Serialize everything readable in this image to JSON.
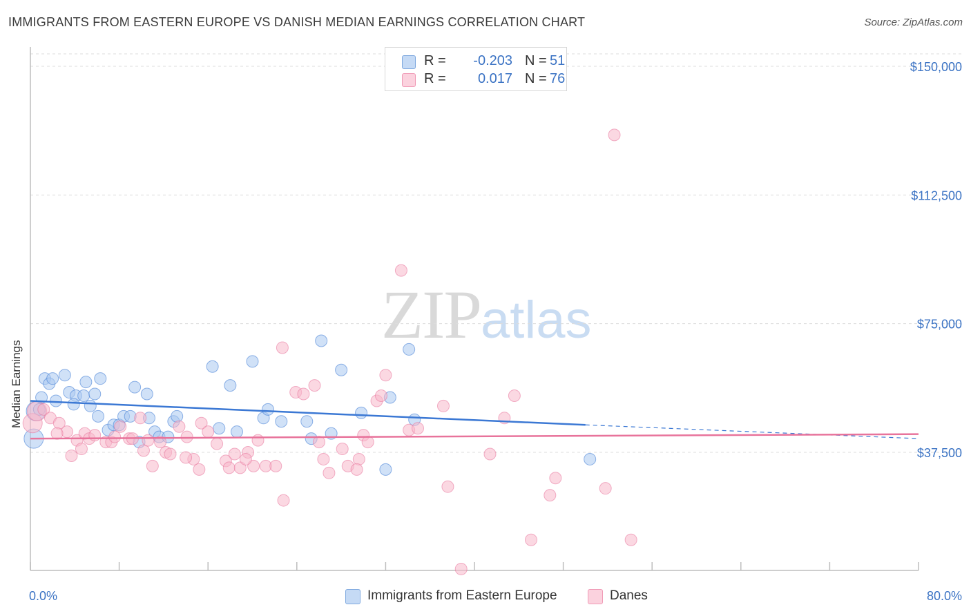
{
  "header": {
    "title": "IMMIGRANTS FROM EASTERN EUROPE VS DANISH MEDIAN EARNINGS CORRELATION CHART",
    "source": "Source: ZipAtlas.com"
  },
  "watermark": {
    "zip": "ZIP",
    "atlas": "atlas"
  },
  "legend": {
    "rows": [
      {
        "r_label": "R =",
        "r_value": "-0.203",
        "n_label": "N =",
        "n_value": "51",
        "color": "#a9c8f0"
      },
      {
        "r_label": "R =",
        "r_value": "0.017",
        "n_label": "N =",
        "n_value": "76",
        "color": "#f7b8cb"
      }
    ]
  },
  "bottom_legend": {
    "items": [
      {
        "label": "Immigrants from Eastern Europe",
        "color": "#a9c8f0"
      },
      {
        "label": "Danes",
        "color": "#f7b8cb"
      }
    ]
  },
  "chart_data": {
    "type": "scatter",
    "title": "IMMIGRANTS FROM EASTERN EUROPE VS DANISH MEDIAN EARNINGS CORRELATION CHART",
    "xlabel": "",
    "ylabel": "Median Earnings",
    "xlim": [
      0,
      80
    ],
    "ylim": [
      0,
      155000
    ],
    "x_tick_labels": [
      "0.0%",
      "80.0%"
    ],
    "y_ticks": [
      37500,
      75000,
      112500,
      150000
    ],
    "y_tick_labels": [
      "$37,500",
      "$75,000",
      "$112,500",
      "$150,000"
    ],
    "grid": true,
    "legend_position": "top-center",
    "series": [
      {
        "name": "Immigrants from Eastern Europe",
        "color": "#3b78d4",
        "fill": "#a9c8f0",
        "trend": {
          "x": [
            0,
            50
          ],
          "y": [
            52500,
            45500
          ],
          "dashed_to": [
            80,
            41500
          ]
        },
        "points": [
          [
            0.3,
            41500
          ],
          [
            0.5,
            49500
          ],
          [
            1.0,
            53500
          ],
          [
            1.3,
            59000
          ],
          [
            1.7,
            57500
          ],
          [
            2.0,
            59000
          ],
          [
            2.3,
            52500
          ],
          [
            3.1,
            60000
          ],
          [
            3.5,
            55000
          ],
          [
            4.1,
            54000
          ],
          [
            4.8,
            54000
          ],
          [
            3.9,
            51500
          ],
          [
            5.0,
            58000
          ],
          [
            5.4,
            51000
          ],
          [
            5.8,
            54500
          ],
          [
            6.1,
            48000
          ],
          [
            6.3,
            59000
          ],
          [
            7.0,
            44000
          ],
          [
            7.5,
            45500
          ],
          [
            8.0,
            45500
          ],
          [
            8.4,
            48000
          ],
          [
            9.0,
            48000
          ],
          [
            9.4,
            56500
          ],
          [
            9.8,
            40500
          ],
          [
            10.5,
            54500
          ],
          [
            10.7,
            47500
          ],
          [
            11.2,
            43500
          ],
          [
            11.6,
            42000
          ],
          [
            12.4,
            42000
          ],
          [
            12.9,
            46500
          ],
          [
            13.2,
            48000
          ],
          [
            16.4,
            62500
          ],
          [
            17.0,
            44500
          ],
          [
            18.0,
            57000
          ],
          [
            18.6,
            43500
          ],
          [
            20.0,
            64000
          ],
          [
            21.0,
            47500
          ],
          [
            21.4,
            50000
          ],
          [
            22.6,
            46500
          ],
          [
            24.9,
            46500
          ],
          [
            25.3,
            41500
          ],
          [
            26.2,
            70000
          ],
          [
            27.1,
            43000
          ],
          [
            28.0,
            61500
          ],
          [
            29.8,
            49000
          ],
          [
            32.0,
            32500
          ],
          [
            32.4,
            53500
          ],
          [
            34.1,
            67500
          ],
          [
            34.6,
            47000
          ],
          [
            50.4,
            35500
          ],
          [
            0.8,
            50000
          ]
        ]
      },
      {
        "name": "Danes",
        "color": "#e8739b",
        "fill": "#f7b8cb",
        "trend": {
          "x": [
            0,
            80
          ],
          "y": [
            41500,
            42800
          ]
        },
        "points": [
          [
            0.2,
            46000
          ],
          [
            0.6,
            49500
          ],
          [
            1.2,
            50000
          ],
          [
            1.8,
            47500
          ],
          [
            2.6,
            46000
          ],
          [
            3.3,
            43500
          ],
          [
            4.2,
            41000
          ],
          [
            4.9,
            43000
          ],
          [
            5.3,
            41500
          ],
          [
            2.4,
            43000
          ],
          [
            3.7,
            36500
          ],
          [
            4.6,
            38500
          ],
          [
            5.8,
            42500
          ],
          [
            6.8,
            40500
          ],
          [
            7.3,
            40500
          ],
          [
            7.6,
            42000
          ],
          [
            8.1,
            45000
          ],
          [
            8.9,
            41500
          ],
          [
            9.2,
            41500
          ],
          [
            9.9,
            47500
          ],
          [
            10.2,
            38000
          ],
          [
            10.6,
            41000
          ],
          [
            11.0,
            33500
          ],
          [
            11.7,
            40500
          ],
          [
            12.2,
            37500
          ],
          [
            12.6,
            37000
          ],
          [
            13.4,
            45000
          ],
          [
            14.1,
            42000
          ],
          [
            14.7,
            35500
          ],
          [
            15.4,
            46000
          ],
          [
            15.2,
            32500
          ],
          [
            16.0,
            43500
          ],
          [
            16.8,
            40000
          ],
          [
            17.6,
            35000
          ],
          [
            17.9,
            33000
          ],
          [
            18.4,
            37000
          ],
          [
            18.9,
            33000
          ],
          [
            19.6,
            37500
          ],
          [
            20.1,
            33500
          ],
          [
            20.5,
            41000
          ],
          [
            21.2,
            33500
          ],
          [
            22.1,
            33500
          ],
          [
            22.7,
            68000
          ],
          [
            22.8,
            23500
          ],
          [
            23.9,
            55000
          ],
          [
            24.6,
            54500
          ],
          [
            25.6,
            57000
          ],
          [
            26.0,
            40500
          ],
          [
            26.4,
            35500
          ],
          [
            26.9,
            31500
          ],
          [
            28.1,
            38500
          ],
          [
            28.6,
            33500
          ],
          [
            29.6,
            35500
          ],
          [
            30.0,
            42500
          ],
          [
            30.4,
            40500
          ],
          [
            31.2,
            52500
          ],
          [
            31.6,
            54000
          ],
          [
            32.0,
            60000
          ],
          [
            33.4,
            90500
          ],
          [
            34.1,
            44000
          ],
          [
            34.9,
            44500
          ],
          [
            37.2,
            51000
          ],
          [
            37.6,
            27500
          ],
          [
            38.8,
            3500
          ],
          [
            41.4,
            37000
          ],
          [
            42.7,
            47500
          ],
          [
            43.6,
            54000
          ],
          [
            45.1,
            12000
          ],
          [
            46.8,
            25000
          ],
          [
            47.3,
            30000
          ],
          [
            51.8,
            27000
          ],
          [
            52.6,
            130000
          ],
          [
            54.1,
            12000
          ],
          [
            29.4,
            32500
          ],
          [
            14.0,
            36000
          ],
          [
            19.4,
            35500
          ]
        ]
      }
    ]
  }
}
